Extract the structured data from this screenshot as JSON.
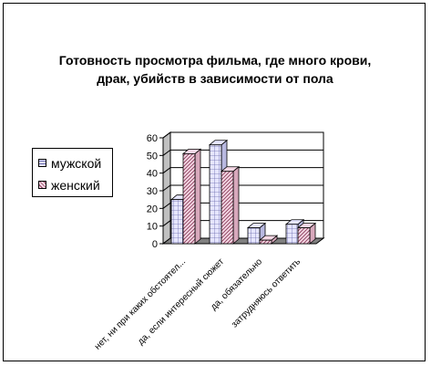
{
  "chart_data": {
    "type": "bar",
    "title": "Готовность просмотра фильма, где много крови, драк, убийств в зависимости от пола",
    "title_lines": [
      "Готовность просмотра фильма, где много крови,",
      "драк, убийств в зависимости от пола"
    ],
    "categories": [
      "нет, ни при каких обстоятел...",
      "да, если интересный сюжет",
      "да, обязательно",
      "затрудняюсь ответить"
    ],
    "series": [
      {
        "name": "мужской",
        "values": [
          25,
          56,
          9,
          11
        ],
        "color": "#e6e6ff",
        "pattern": "grid"
      },
      {
        "name": "женский",
        "values": [
          51,
          41,
          2,
          9
        ],
        "color": "#f4d7e4",
        "pattern": "diagonal"
      }
    ],
    "yticks": [
      0,
      10,
      20,
      30,
      40,
      50,
      60
    ],
    "ylim": [
      0,
      60
    ],
    "grid": true,
    "legend_position": "left",
    "three_d": true
  }
}
